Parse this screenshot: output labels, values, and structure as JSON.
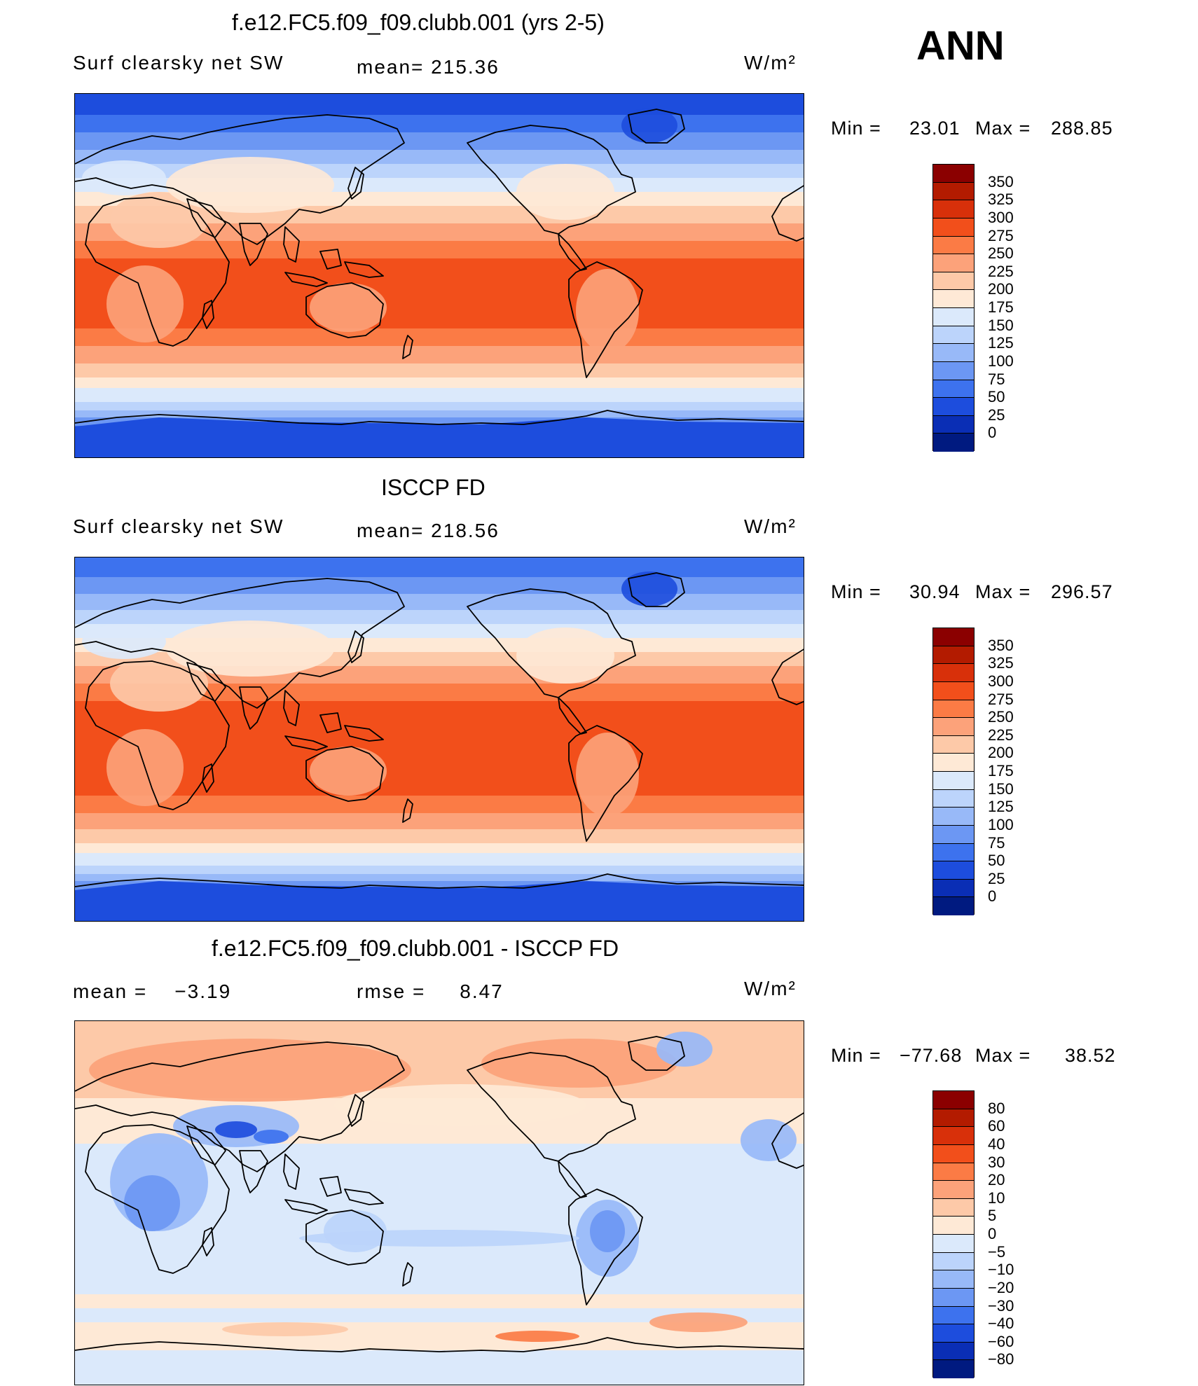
{
  "header": {
    "season": "ANN"
  },
  "panels": [
    {
      "title": "f.e12.FC5.f09_f09.clubb.001 (yrs 2-5)",
      "left_label": "Surf clearsky net SW",
      "center_label": "mean= 215.36",
      "units": "W/m²",
      "min_label": "Min =",
      "min_value": "23.01",
      "max_label": "Max =",
      "max_value": "288.85",
      "mean": 215.36
    },
    {
      "title": "ISCCP FD",
      "left_label": "Surf clearsky net SW",
      "center_label": "mean= 218.56",
      "units": "W/m²",
      "min_label": "Min =",
      "min_value": "30.94",
      "max_label": "Max =",
      "max_value": "296.57",
      "mean": 218.56
    },
    {
      "title": "f.e12.FC5.f09_f09.clubb.001 - ISCCP FD",
      "left_label": "mean =    −3.19",
      "center_label": "rmse =     8.47",
      "units": "W/m²",
      "min_label": "Min =",
      "min_value": "−77.68",
      "max_label": "Max =",
      "max_value": "38.52",
      "mean": -3.19,
      "rmse": 8.47
    }
  ],
  "colorbars": {
    "absolute": {
      "levels": [
        "350",
        "325",
        "300",
        "275",
        "250",
        "225",
        "200",
        "175",
        "150",
        "125",
        "100",
        "75",
        "50",
        "25",
        "0"
      ],
      "colors": [
        "#8b0000",
        "#b31b00",
        "#d8300a",
        "#f24f1b",
        "#fb7b45",
        "#fca27a",
        "#fdc9a8",
        "#fee9d6",
        "#dbe9fb",
        "#bcd4fb",
        "#98b9f8",
        "#6c97f3",
        "#3d72ee",
        "#1d4ddd",
        "#0a2eb5",
        "#001a80"
      ]
    },
    "difference": {
      "levels": [
        "80",
        "60",
        "40",
        "30",
        "20",
        "10",
        "5",
        "0",
        "−5",
        "−10",
        "−20",
        "−30",
        "−40",
        "−60",
        "−80"
      ],
      "colors": [
        "#8b0000",
        "#b31b00",
        "#d8300a",
        "#f24f1b",
        "#fb7b45",
        "#fca27a",
        "#fdc9a8",
        "#fee9d6",
        "#dbe9fb",
        "#bcd4fb",
        "#98b9f8",
        "#6c97f3",
        "#3d72ee",
        "#1d4ddd",
        "#0a2eb5",
        "#001a80"
      ]
    }
  }
}
